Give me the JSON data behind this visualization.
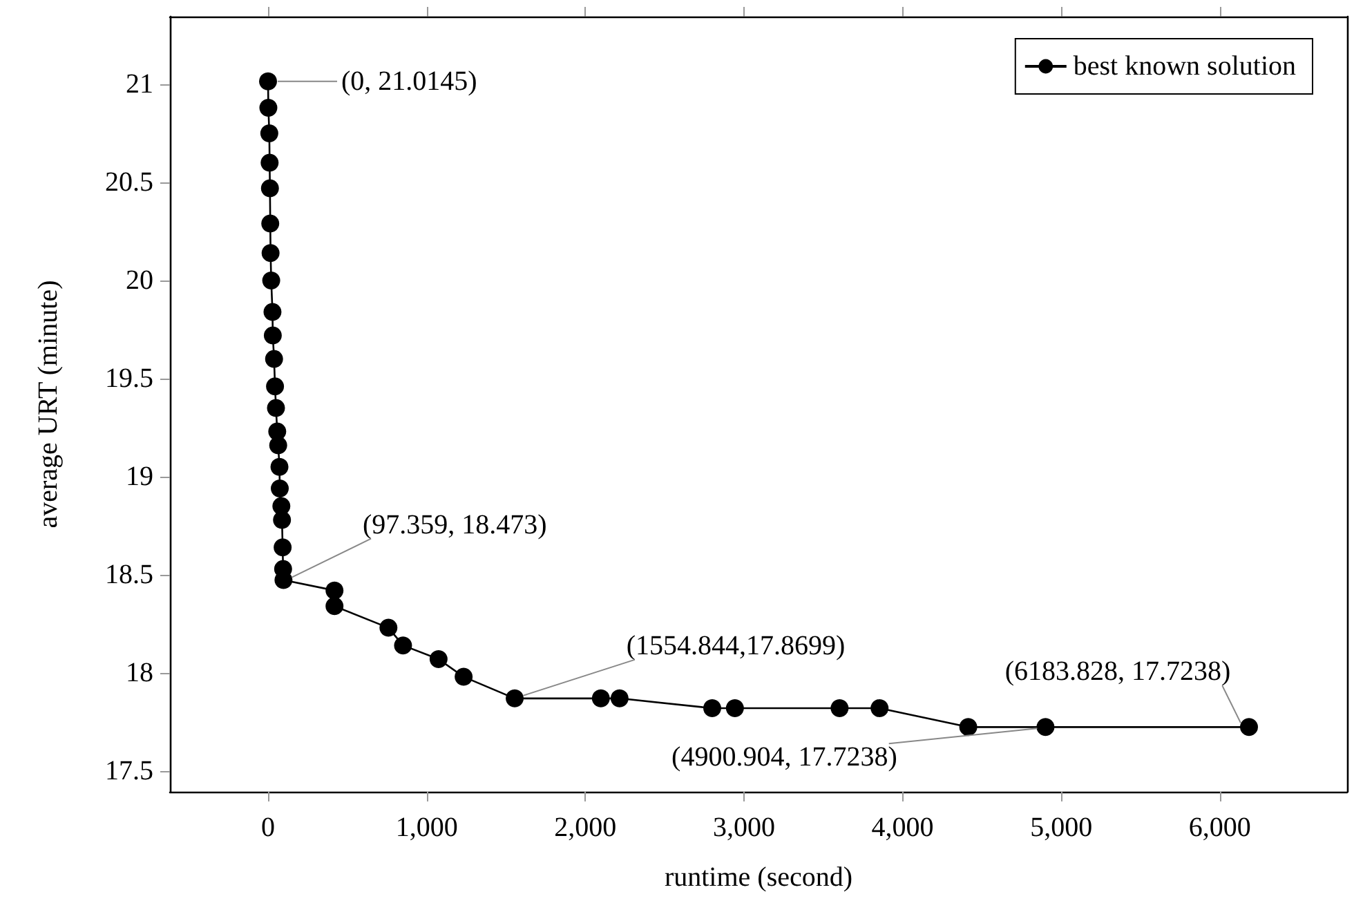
{
  "chart_data": {
    "type": "line",
    "xlabel": "runtime (second)",
    "ylabel": "average URT (minute)",
    "x": [
      0,
      2,
      8,
      10,
      12,
      14,
      16,
      20,
      28,
      30,
      38,
      44,
      50,
      58,
      64,
      72,
      74,
      84,
      88,
      92,
      95,
      97.359,
      419,
      419,
      759,
      851,
      1075,
      1233,
      1554.844,
      2098,
      2216,
      2800,
      2943,
      3603,
      3855,
      4414,
      4900.904,
      6183.828
    ],
    "series": [
      {
        "name": "best known solution",
        "color": "#000000",
        "values": [
          21.0145,
          20.88,
          20.75,
          20.6,
          20.47,
          20.29,
          20.14,
          20.0,
          19.84,
          19.72,
          19.6,
          19.46,
          19.35,
          19.23,
          19.16,
          19.05,
          18.94,
          18.85,
          18.78,
          18.64,
          18.53,
          18.473,
          18.42,
          18.34,
          18.23,
          18.14,
          18.07,
          17.98,
          17.8699,
          17.87,
          17.87,
          17.82,
          17.82,
          17.82,
          17.82,
          17.7238,
          17.7238,
          17.7238
        ]
      }
    ],
    "annotations": [
      {
        "text": "(0, 21.0145)",
        "x": 0,
        "y": 21.0145
      },
      {
        "text": "(97.359, 18.473)",
        "x": 97.359,
        "y": 18.473
      },
      {
        "text": "(1554.844,17.8699)",
        "x": 1554.844,
        "y": 17.8699
      },
      {
        "text": "(4900.904, 17.7238)",
        "x": 4900.904,
        "y": 17.7238
      },
      {
        "text": "(6183.828, 17.7238)",
        "x": 6183.828,
        "y": 17.7238
      }
    ],
    "xlim": [
      -618.4,
      6802.2
    ],
    "xticks": [
      {
        "value": 0,
        "label": "0"
      },
      {
        "value": 1000,
        "label": "1,000"
      },
      {
        "value": 2000,
        "label": "2,000"
      },
      {
        "value": 3000,
        "label": "3,000"
      },
      {
        "value": 4000,
        "label": "4,000"
      },
      {
        "value": 5000,
        "label": "5,000"
      },
      {
        "value": 6000,
        "label": "6,000"
      }
    ],
    "ylim": [
      17.394,
      21.345
    ],
    "yticks": [
      17.5,
      18,
      18.5,
      19,
      19.5,
      20,
      20.5,
      21
    ],
    "grid": false,
    "legend": "top right",
    "marker": "circle",
    "line_style": "solid"
  }
}
